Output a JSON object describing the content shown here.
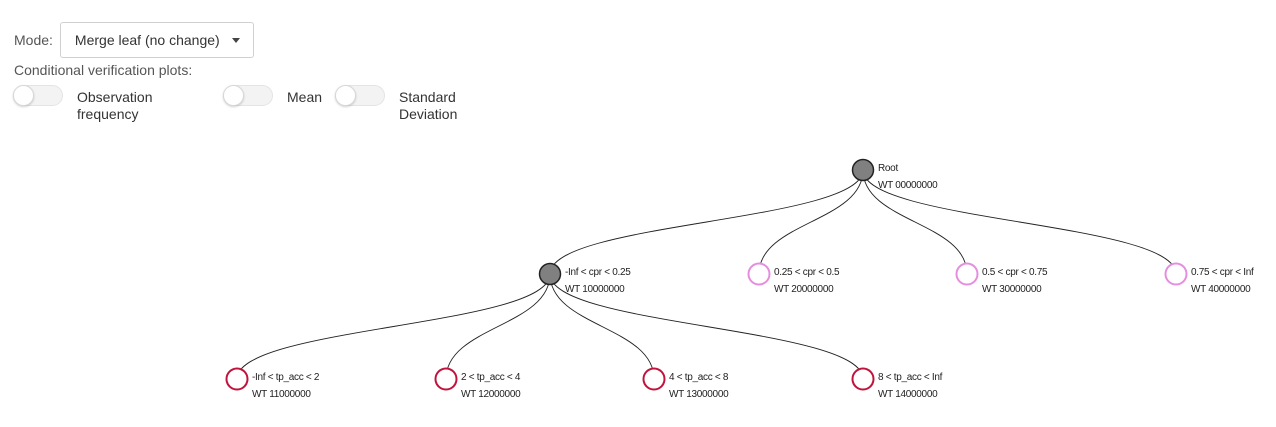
{
  "mode": {
    "label": "Mode:",
    "selected": "Merge leaf (no change)"
  },
  "conditional_plots": {
    "label": "Conditional verification plots:",
    "toggles": [
      {
        "label_line1": "Observation",
        "label_line2": "frequency",
        "on": false
      },
      {
        "label_line1": "Mean",
        "label_line2": "",
        "on": false
      },
      {
        "label_line1": "Standard",
        "label_line2": "Deviation",
        "on": false
      }
    ]
  },
  "tree": {
    "colors": {
      "internal_fill": "#808080",
      "internal_stroke": "#222222",
      "leaf_pink": "#e58ee0",
      "leaf_red": "#c0143c",
      "link": "#222222"
    },
    "nodes": [
      {
        "id": "root",
        "title": "Root",
        "code": "WT 00000000",
        "kind": "internal"
      },
      {
        "id": "n1",
        "title": "-Inf < cpr < 0.25",
        "code": "WT 10000000",
        "kind": "internal"
      },
      {
        "id": "n2",
        "title": "0.25 < cpr < 0.5",
        "code": "WT 20000000",
        "kind": "leaf-pink"
      },
      {
        "id": "n3",
        "title": "0.5 < cpr < 0.75",
        "code": "WT 30000000",
        "kind": "leaf-pink"
      },
      {
        "id": "n4",
        "title": "0.75 < cpr < Inf",
        "code": "WT 40000000",
        "kind": "leaf-pink"
      },
      {
        "id": "n11",
        "title": "-Inf < tp_acc < 2",
        "code": "WT 11000000",
        "kind": "leaf-red"
      },
      {
        "id": "n12",
        "title": "2 < tp_acc < 4",
        "code": "WT 12000000",
        "kind": "leaf-red"
      },
      {
        "id": "n13",
        "title": "4 < tp_acc < 8",
        "code": "WT 13000000",
        "kind": "leaf-red"
      },
      {
        "id": "n14",
        "title": "8 < tp_acc < Inf",
        "code": "WT 14000000",
        "kind": "leaf-red"
      }
    ],
    "links": [
      {
        "from": "root",
        "to": "n1"
      },
      {
        "from": "root",
        "to": "n2"
      },
      {
        "from": "root",
        "to": "n3"
      },
      {
        "from": "root",
        "to": "n4"
      },
      {
        "from": "n1",
        "to": "n11"
      },
      {
        "from": "n1",
        "to": "n12"
      },
      {
        "from": "n1",
        "to": "n13"
      },
      {
        "from": "n1",
        "to": "n14"
      }
    ]
  }
}
